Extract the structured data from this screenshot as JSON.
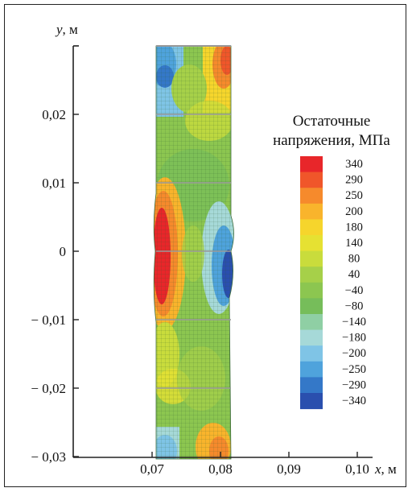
{
  "figure": {
    "y_axis_var": "y",
    "y_axis_unit": ", м",
    "x_axis_var": "x",
    "x_axis_unit": ", м",
    "y_ticks": [
      "0,02",
      "0,01",
      "0",
      "− 0,01",
      "− 0,02",
      "− 0,03"
    ],
    "y_tick_values": [
      0.02,
      0.01,
      0,
      -0.01,
      -0.02,
      -0.03
    ],
    "x_ticks": [
      "0,07",
      "0,08",
      "0,09",
      "0,10"
    ],
    "x_tick_values": [
      0.07,
      0.08,
      0.09,
      0.1
    ],
    "x_range": [
      0.06,
      0.105
    ],
    "y_range": [
      -0.03,
      0.03
    ],
    "specimen_x_range": [
      0.0725,
      0.084
    ],
    "legend": {
      "title_line1": "Остаточные",
      "title_line2": "напряжения, МПа",
      "levels": [
        {
          "label": "340",
          "color": "#e8262a"
        },
        {
          "label": "290",
          "color": "#f0562a"
        },
        {
          "label": "250",
          "color": "#f68a2c"
        },
        {
          "label": "200",
          "color": "#f9b42c"
        },
        {
          "label": "180",
          "color": "#f6d52c"
        },
        {
          "label": "140",
          "color": "#e6e132"
        },
        {
          "label": "80",
          "color": "#c9dc3c"
        },
        {
          "label": "40",
          "color": "#a6d049"
        },
        {
          "label": "−40",
          "color": "#8cc650"
        },
        {
          "label": "−80",
          "color": "#76bd5a"
        },
        {
          "label": "−140",
          "color": "#8fcfa4"
        },
        {
          "label": "−180",
          "color": "#a6d9d8"
        },
        {
          "label": "−200",
          "color": "#7fc4e6"
        },
        {
          "label": "−250",
          "color": "#4fa3dc"
        },
        {
          "label": "−290",
          "color": "#3478c8"
        },
        {
          "label": "−340",
          "color": "#2a4fae"
        }
      ]
    }
  }
}
